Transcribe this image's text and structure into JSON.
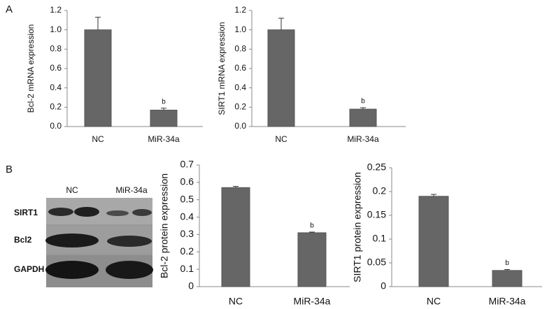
{
  "panel_labels": [
    "A",
    "B"
  ],
  "blot": {
    "columns": [
      "NC",
      "MiR-34a"
    ],
    "rows": [
      "SIRT1",
      "Bcl2",
      "GAPDH"
    ]
  },
  "chart_data": [
    {
      "type": "bar",
      "y_label": "Bcl-2 mRNA expression",
      "categories": [
        "NC",
        "MiR-34a"
      ],
      "series": [
        {
          "color": "#666666",
          "values": [
            1.0,
            0.17
          ],
          "errors": [
            0.13,
            0.02
          ],
          "annotations": [
            null,
            "b"
          ]
        }
      ],
      "ylim": [
        0,
        1.2
      ],
      "yticks": [
        {
          "value": 0,
          "label": "0.0"
        },
        0.2,
        0.4,
        0.6,
        0.8,
        {
          "value": 1,
          "label": "1.0"
        },
        1.2
      ],
      "grid": false
    },
    {
      "type": "bar",
      "y_label": "SIRT1 mRNA expression",
      "categories": [
        "NC",
        "MiR-34a"
      ],
      "series": [
        {
          "color": "#666666",
          "values": [
            1.0,
            0.18
          ],
          "errors": [
            0.12,
            0.015
          ],
          "annotations": [
            null,
            "b"
          ]
        }
      ],
      "ylim": [
        0,
        1.2
      ],
      "yticks": [
        {
          "value": 0,
          "label": "0.0"
        },
        0.2,
        0.4,
        0.6,
        0.8,
        {
          "value": 1,
          "label": "1.0"
        },
        1.2
      ],
      "grid": false
    },
    {
      "type": "bar",
      "y_label": "Bcl-2 protein expression",
      "categories": [
        "NC",
        "MiR-34a"
      ],
      "series": [
        {
          "color": "#666666",
          "values": [
            0.57,
            0.31
          ],
          "errors": [
            0.007,
            0.004
          ],
          "annotations": [
            null,
            "b"
          ]
        }
      ],
      "ylim": [
        0,
        0.7
      ],
      "yticks": [
        0,
        0.1,
        0.2,
        0.3,
        0.4,
        0.5,
        0.6,
        0.7
      ],
      "grid": false
    },
    {
      "type": "bar",
      "y_label": "SIRT1 protein expression",
      "categories": [
        "NC",
        "MiR-34a"
      ],
      "series": [
        {
          "color": "#666666",
          "values": [
            0.19,
            0.034
          ],
          "errors": [
            0.004,
            0.002
          ],
          "annotations": [
            null,
            "b"
          ]
        }
      ],
      "ylim": [
        0,
        0.25
      ],
      "yticks": [
        0,
        0.05,
        0.1,
        0.15,
        0.2,
        0.25
      ],
      "grid": false
    }
  ]
}
